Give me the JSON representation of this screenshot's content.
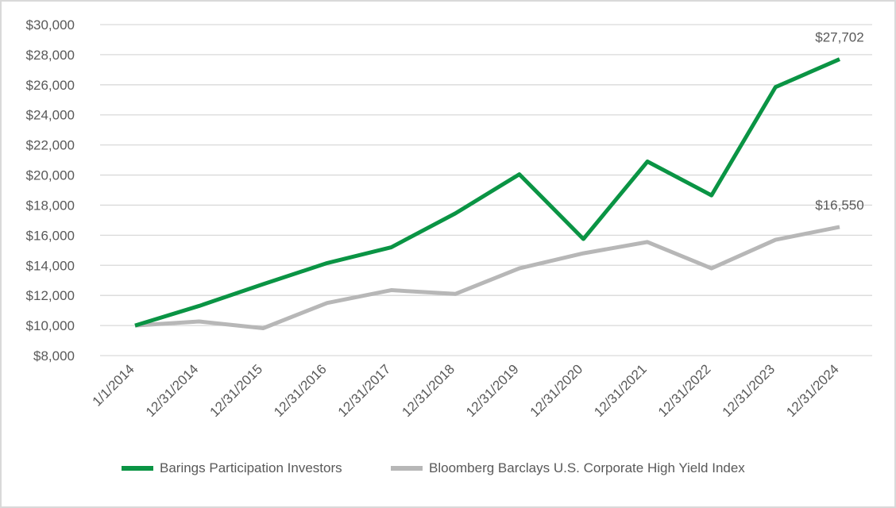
{
  "chart_data": {
    "type": "line",
    "title": "",
    "xlabel": "",
    "ylabel": "",
    "categories": [
      "1/1/2014",
      "12/31/2014",
      "12/31/2015",
      "12/31/2016",
      "12/31/2017",
      "12/31/2018",
      "12/31/2019",
      "12/31/2020",
      "12/31/2021",
      "12/31/2022",
      "12/31/2023",
      "12/31/2024"
    ],
    "ylim": [
      8000,
      30000
    ],
    "y_ticks": [
      8000,
      10000,
      12000,
      14000,
      16000,
      18000,
      20000,
      22000,
      24000,
      26000,
      28000,
      30000
    ],
    "y_tick_labels": [
      "$8,000",
      "$10,000",
      "$12,000",
      "$14,000",
      "$16,000",
      "$18,000",
      "$20,000",
      "$22,000",
      "$24,000",
      "$26,000",
      "$28,000",
      "$30,000"
    ],
    "grid": true,
    "legend_position": "bottom",
    "series": [
      {
        "name": "Barings Participation Investors",
        "color": "#0a9444",
        "values": [
          10000,
          11300,
          12750,
          14150,
          15200,
          17450,
          20050,
          15750,
          20900,
          18650,
          25850,
          27702
        ],
        "end_label": "$27,702"
      },
      {
        "name": "Bloomberg Barclays U.S. Corporate High Yield Index",
        "color": "#b7b7b7",
        "values": [
          10000,
          10270,
          9820,
          11500,
          12350,
          12100,
          13800,
          14800,
          15550,
          13800,
          15700,
          16550
        ],
        "end_label": "$16,550"
      }
    ]
  }
}
